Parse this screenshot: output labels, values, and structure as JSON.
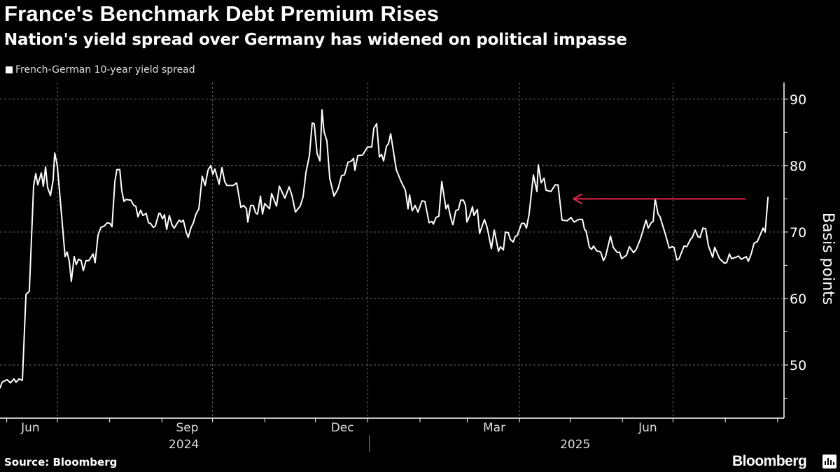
{
  "header": {
    "title": "France's Benchmark Debt Premium Rises",
    "subtitle": "Nation's yield spread over Germany has widened on political impasse"
  },
  "footer": {
    "source": "Source: Bloomberg",
    "logo": "Bloomberg"
  },
  "colors": {
    "line": "#ffffff",
    "arrow": "#e8234a",
    "grid": "#666666",
    "background": "#000000"
  },
  "chart_data": {
    "type": "line",
    "title": "France's Benchmark Debt Premium Rises",
    "ylabel": "Basis points",
    "xlabel": "",
    "x_unit": "days since 2024-05-28",
    "ylim": [
      42,
      92.5
    ],
    "xlim": [
      0,
      462.7
    ],
    "yticks": [
      90,
      80,
      70,
      60,
      50
    ],
    "grid": true,
    "legend_placement": "top-left",
    "x_month_boundaries": [
      4,
      34,
      65,
      96,
      126,
      157,
      187,
      218,
      249,
      277,
      308,
      338,
      369,
      399,
      430,
      461
    ],
    "x_quarter_gridlines": [
      34,
      126,
      218,
      308,
      399
    ],
    "x_tick_labels": [
      {
        "label": "Jun",
        "day": 18
      },
      {
        "label": "Sep",
        "day": 111
      },
      {
        "label": "Dec",
        "day": 203
      },
      {
        "label": "Mar",
        "day": 293
      },
      {
        "label": "Jun",
        "day": 384
      }
    ],
    "year_labels": [
      {
        "label": "2024",
        "day": 109
      },
      {
        "label": "2025",
        "day": 341
      }
    ],
    "year_separator_day": 219,
    "annotation_arrow": {
      "value": 75,
      "from_day": 442,
      "to_day": 340
    },
    "series": [
      {
        "name": "French-German 10-year yield spread",
        "points": [
          [
            0,
            46.5
          ],
          [
            1.2,
            47.4
          ],
          [
            4.2,
            47.8
          ],
          [
            6.2,
            47.3
          ],
          [
            8.3,
            47.9
          ],
          [
            9.5,
            47.4
          ],
          [
            11.2,
            47.9
          ],
          [
            13.3,
            47.7
          ],
          [
            15.4,
            60.6
          ],
          [
            17.4,
            61.1
          ],
          [
            19.9,
            76.9
          ],
          [
            21.2,
            78.8
          ],
          [
            22.4,
            77.1
          ],
          [
            24.5,
            78.9
          ],
          [
            25.7,
            76.9
          ],
          [
            27.0,
            79.8
          ],
          [
            28.2,
            76.7
          ],
          [
            29.9,
            75.5
          ],
          [
            31.5,
            77.8
          ],
          [
            32.4,
            81.9
          ],
          [
            34.0,
            80.0
          ],
          [
            36.1,
            73.7
          ],
          [
            38.6,
            66.3
          ],
          [
            39.8,
            67.0
          ],
          [
            41.1,
            65.6
          ],
          [
            42.3,
            62.6
          ],
          [
            44.0,
            66.3
          ],
          [
            45.2,
            65.1
          ],
          [
            46.5,
            65.9
          ],
          [
            48.1,
            65.7
          ],
          [
            49.4,
            64.2
          ],
          [
            51.0,
            65.7
          ],
          [
            52.7,
            65.7
          ],
          [
            55.2,
            66.7
          ],
          [
            56.4,
            65.4
          ],
          [
            58.1,
            69.5
          ],
          [
            59.8,
            70.7
          ],
          [
            61.8,
            70.9
          ],
          [
            63.5,
            71.4
          ],
          [
            65.2,
            71.3
          ],
          [
            66.4,
            70.8
          ],
          [
            68.1,
            77.6
          ],
          [
            69.3,
            79.4
          ],
          [
            71.0,
            79.4
          ],
          [
            72.2,
            76.2
          ],
          [
            73.5,
            74.6
          ],
          [
            74.7,
            74.9
          ],
          [
            77.6,
            74.8
          ],
          [
            79.3,
            74.0
          ],
          [
            80.5,
            73.9
          ],
          [
            81.8,
            72.3
          ],
          [
            83.4,
            73.3
          ],
          [
            84.7,
            72.5
          ],
          [
            86.7,
            72.8
          ],
          [
            88.0,
            71.4
          ],
          [
            89.2,
            71.3
          ],
          [
            90.9,
            70.7
          ],
          [
            92.1,
            70.9
          ],
          [
            94.2,
            72.8
          ],
          [
            95.0,
            72.8
          ],
          [
            96.3,
            72.0
          ],
          [
            97.5,
            72.6
          ],
          [
            98.8,
            70.4
          ],
          [
            100.4,
            72.5
          ],
          [
            102.1,
            71.0
          ],
          [
            103.3,
            70.6
          ],
          [
            106.2,
            71.8
          ],
          [
            107.5,
            71.5
          ],
          [
            108.7,
            71.8
          ],
          [
            110.4,
            70.0
          ],
          [
            111.6,
            69.2
          ],
          [
            113.3,
            70.7
          ],
          [
            114.5,
            71.3
          ],
          [
            116.2,
            72.7
          ],
          [
            117.9,
            73.5
          ],
          [
            119.9,
            78.4
          ],
          [
            121.6,
            77.0
          ],
          [
            123.3,
            79.3
          ],
          [
            124.9,
            80.0
          ],
          [
            126.2,
            78.7
          ],
          [
            127.4,
            79.5
          ],
          [
            129.9,
            77.2
          ],
          [
            131.6,
            79.7
          ],
          [
            133.2,
            77.6
          ],
          [
            134.5,
            77.0
          ],
          [
            138.2,
            77.0
          ],
          [
            140.3,
            77.4
          ],
          [
            142.8,
            73.7
          ],
          [
            144.4,
            74.0
          ],
          [
            146.1,
            73.5
          ],
          [
            146.9,
            71.5
          ],
          [
            148.6,
            74.0
          ],
          [
            150.2,
            74.0
          ],
          [
            151.5,
            72.9
          ],
          [
            152.7,
            72.7
          ],
          [
            154.4,
            75.4
          ],
          [
            155.6,
            72.7
          ],
          [
            156.9,
            74.3
          ],
          [
            159.8,
            73.5
          ],
          [
            161.0,
            75.8
          ],
          [
            163.9,
            73.9
          ],
          [
            165.6,
            76.9
          ],
          [
            166.0,
            76.7
          ],
          [
            168.9,
            75.1
          ],
          [
            171.4,
            76.8
          ],
          [
            173.1,
            75.5
          ],
          [
            175.1,
            73.0
          ],
          [
            178.0,
            73.9
          ],
          [
            179.7,
            75.3
          ],
          [
            181.4,
            79.0
          ],
          [
            183.4,
            81.5
          ],
          [
            185.1,
            86.4
          ],
          [
            186.3,
            86.3
          ],
          [
            188.0,
            81.8
          ],
          [
            189.7,
            80.7
          ],
          [
            190.9,
            88.4
          ],
          [
            192.1,
            85.1
          ],
          [
            193.8,
            83.7
          ],
          [
            195.5,
            78.1
          ],
          [
            198.0,
            75.4
          ],
          [
            200.4,
            76.5
          ],
          [
            202.5,
            78.5
          ],
          [
            204.2,
            78.6
          ],
          [
            206.3,
            80.5
          ],
          [
            208.3,
            80.7
          ],
          [
            209.6,
            81.1
          ],
          [
            210.4,
            79.3
          ],
          [
            212.1,
            81.5
          ],
          [
            215.0,
            81.6
          ],
          [
            217.9,
            82.8
          ],
          [
            220.4,
            82.8
          ],
          [
            221.6,
            85.6
          ],
          [
            223.3,
            86.3
          ],
          [
            224.9,
            81.3
          ],
          [
            226.2,
            81.7
          ],
          [
            227.4,
            80.7
          ],
          [
            229.1,
            82.9
          ],
          [
            230.3,
            83.3
          ],
          [
            231.6,
            84.8
          ],
          [
            234.9,
            79.4
          ],
          [
            237.8,
            77.6
          ],
          [
            240.3,
            76.3
          ],
          [
            241.9,
            73.5
          ],
          [
            242.8,
            75.6
          ],
          [
            244.4,
            73.2
          ],
          [
            246.1,
            74.0
          ],
          [
            247.8,
            73.0
          ],
          [
            250.2,
            74.7
          ],
          [
            251.9,
            74.6
          ],
          [
            254.4,
            71.4
          ],
          [
            256.1,
            71.6
          ],
          [
            256.9,
            71.2
          ],
          [
            258.5,
            72.2
          ],
          [
            260.2,
            72.4
          ],
          [
            261.9,
            77.6
          ],
          [
            264.4,
            73.5
          ],
          [
            265.6,
            74.1
          ],
          [
            267.3,
            72.1
          ],
          [
            268.5,
            71.1
          ],
          [
            270.2,
            73.2
          ],
          [
            271.8,
            73.4
          ],
          [
            273.1,
            74.8
          ],
          [
            274.7,
            74.8
          ],
          [
            276.0,
            74.0
          ],
          [
            276.8,
            71.5
          ],
          [
            278.5,
            72.5
          ],
          [
            280.1,
            73.8
          ],
          [
            281.0,
            72.5
          ],
          [
            283.0,
            73.4
          ],
          [
            284.3,
            69.8
          ],
          [
            287.2,
            71.9
          ],
          [
            288.8,
            70.7
          ],
          [
            291.3,
            67.5
          ],
          [
            293.0,
            70.3
          ],
          [
            295.5,
            67.1
          ],
          [
            296.7,
            67.8
          ],
          [
            298.4,
            67.3
          ],
          [
            299.6,
            70.0
          ],
          [
            301.3,
            69.9
          ],
          [
            302.5,
            68.9
          ],
          [
            304.2,
            68.5
          ],
          [
            305.4,
            69.3
          ],
          [
            306.7,
            69.5
          ],
          [
            309.2,
            71.3
          ],
          [
            310.8,
            71.3
          ],
          [
            312.1,
            70.6
          ],
          [
            313.7,
            72.7
          ],
          [
            316.2,
            78.6
          ],
          [
            318.3,
            76.1
          ],
          [
            319.1,
            80.1
          ],
          [
            320.8,
            77.4
          ],
          [
            322.5,
            78.1
          ],
          [
            323.7,
            76.3
          ],
          [
            326.6,
            76.1
          ],
          [
            329.1,
            77.1
          ],
          [
            330.8,
            77.1
          ],
          [
            333.2,
            71.8
          ],
          [
            336.2,
            71.7
          ],
          [
            338.6,
            72.2
          ],
          [
            340.3,
            71.5
          ],
          [
            343.2,
            71.9
          ],
          [
            345.3,
            71.9
          ],
          [
            346.5,
            70.4
          ],
          [
            347.4,
            70.2
          ],
          [
            349.4,
            67.7
          ],
          [
            350.7,
            67.4
          ],
          [
            351.9,
            67.9
          ],
          [
            353.6,
            67.2
          ],
          [
            356.1,
            67.0
          ],
          [
            357.7,
            65.7
          ],
          [
            359.0,
            66.3
          ],
          [
            361.9,
            69.4
          ],
          [
            363.5,
            67.7
          ],
          [
            366.0,
            66.9
          ],
          [
            367.3,
            67.0
          ],
          [
            368.5,
            66.0
          ],
          [
            371.4,
            66.5
          ],
          [
            373.1,
            67.8
          ],
          [
            375.6,
            66.9
          ],
          [
            377.2,
            67.4
          ],
          [
            379.7,
            69.0
          ],
          [
            383.0,
            71.8
          ],
          [
            384.3,
            70.6
          ],
          [
            386.0,
            71.4
          ],
          [
            387.2,
            71.6
          ],
          [
            388.4,
            75.0
          ],
          [
            390.1,
            72.7
          ],
          [
            391.3,
            72.3
          ],
          [
            394.3,
            69.8
          ],
          [
            396.7,
            67.6
          ],
          [
            398.4,
            67.8
          ],
          [
            399.6,
            67.7
          ],
          [
            401.3,
            65.8
          ],
          [
            402.6,
            66.0
          ],
          [
            405.5,
            67.9
          ],
          [
            407.1,
            67.8
          ],
          [
            409.6,
            69.0
          ],
          [
            410.4,
            69.2
          ],
          [
            412.1,
            70.3
          ],
          [
            413.8,
            69.3
          ],
          [
            415.0,
            69.2
          ],
          [
            416.7,
            70.6
          ],
          [
            418.3,
            70.5
          ],
          [
            420.0,
            67.9
          ],
          [
            422.5,
            66.2
          ],
          [
            423.7,
            67.7
          ],
          [
            426.6,
            66.0
          ],
          [
            429.5,
            65.3
          ],
          [
            430.8,
            65.4
          ],
          [
            432.4,
            66.7
          ],
          [
            433.7,
            66.0
          ],
          [
            436.2,
            66.2
          ],
          [
            437.8,
            66.4
          ],
          [
            439.5,
            65.9
          ],
          [
            442.4,
            66.3
          ],
          [
            443.6,
            65.6
          ],
          [
            445.3,
            66.7
          ],
          [
            447.0,
            68.3
          ],
          [
            449.0,
            68.6
          ],
          [
            452.4,
            70.6
          ],
          [
            453.6,
            70.0
          ],
          [
            455.3,
            75.3
          ]
        ]
      }
    ]
  }
}
